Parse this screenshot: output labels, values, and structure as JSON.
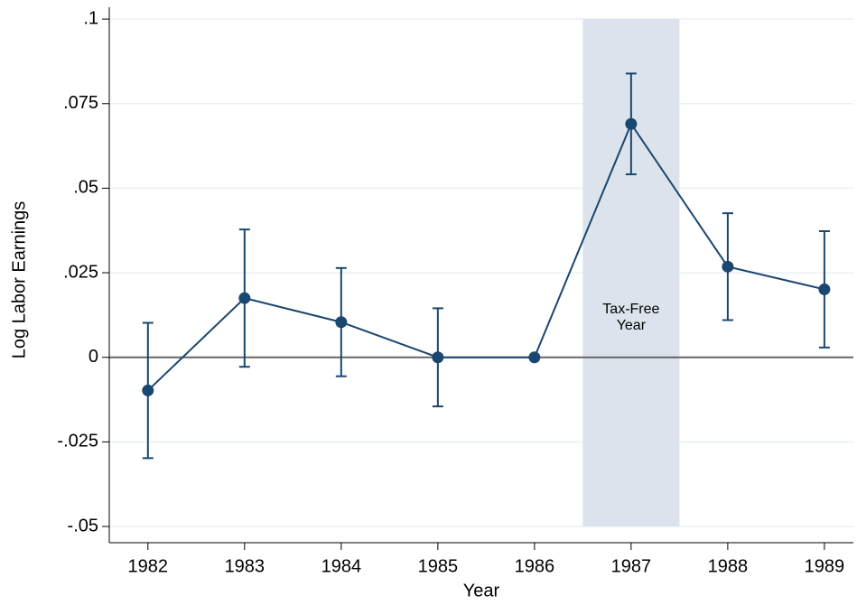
{
  "chart_data": {
    "type": "line",
    "x_label": "Year",
    "y_label": "Log Labor Earnings",
    "x": [
      1982,
      1983,
      1984,
      1985,
      1986,
      1987,
      1988,
      1989
    ],
    "values": [
      -0.0098,
      0.0175,
      0.0104,
      0,
      0,
      0.069,
      0.0268,
      0.0201
    ],
    "errors": [
      0.02,
      0.0203,
      0.016,
      0.0145,
      null,
      0.0149,
      0.0158,
      0.0172
    ],
    "color": "#1a476f",
    "xlim": [
      1981.6,
      1989.3
    ],
    "xticks": [
      1982,
      1983,
      1984,
      1985,
      1986,
      1987,
      1988,
      1989
    ],
    "ylim": [
      -0.0548,
      0.1035
    ],
    "yticks": [
      {
        "value": 0.1,
        "label": ".1"
      },
      {
        "value": 0.075,
        "label": ".075"
      },
      {
        "value": 0.05,
        "label": ".05"
      },
      {
        "value": 0.025,
        "label": ".025"
      },
      0,
      {
        "value": -0.025,
        "label": "-.025"
      },
      {
        "value": -0.05,
        "label": "-.05"
      }
    ],
    "grid": true,
    "reference_line": 0,
    "shaded_region": {
      "xmin": 1986.5,
      "xmax": 1987.5,
      "ymin": -0.05,
      "ymax": 0.1,
      "color": "#dce3ec",
      "label": [
        "Tax-Free",
        "Year"
      ]
    }
  }
}
